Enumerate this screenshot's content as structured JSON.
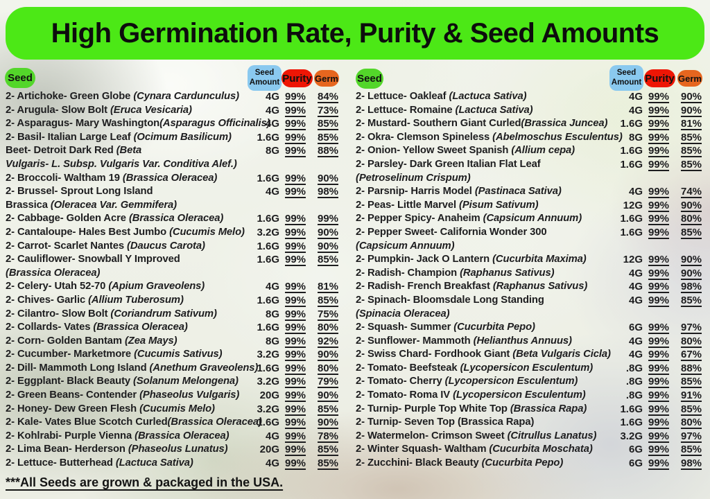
{
  "title": "High Germination Rate, Purity & Seed Amounts",
  "footer": "***All Seeds are grown & packaged in the USA.",
  "colors": {
    "banner": "#4ce816",
    "seed_badge": "#53d62a",
    "amount_badge": "#8ac9ef",
    "purity_badge": "#ee1605",
    "germ_badge": "#e6661f",
    "text": "#1d1d1f"
  },
  "header": {
    "seed": "Seed",
    "amount1": "Seed",
    "amount2": "Amount",
    "purity": "Purity",
    "germ": "Germ"
  },
  "columns": [
    {
      "side": "left",
      "rows": [
        {
          "lines": [
            [
              {
                "t": "2- Artichoke- Green Globe "
              },
              {
                "t": "(Cynara Cardunculus)",
                "i": 1
              }
            ]
          ],
          "amount": "4G",
          "purity": "99%",
          "germ": "84%"
        },
        {
          "lines": [
            [
              {
                "t": "2- Arugula- Slow Bolt "
              },
              {
                "t": "(Eruca Vesicaria)",
                "i": 1
              }
            ]
          ],
          "amount": "4G",
          "purity": "99%",
          "germ": "73%"
        },
        {
          "lines": [
            [
              {
                "t": "2- Asparagus- Mary Washington"
              },
              {
                "t": "(Asparagus Officinalis)",
                "i": 1
              }
            ]
          ],
          "amount": "4G",
          "purity": "99%",
          "germ": "85%"
        },
        {
          "lines": [
            [
              {
                "t": "2- Basil- Italian Large Leaf "
              },
              {
                "t": "(Ocimum Basilicum)",
                "i": 1
              }
            ]
          ],
          "amount": "1.6G",
          "purity": "99%",
          "germ": "85%"
        },
        {
          "lines": [
            [
              {
                "t": "Beet- Detroit Dark Red "
              },
              {
                "t": "(Beta",
                "i": 1
              }
            ],
            [
              {
                "t": "Vulgaris- L. Subsp. Vulgaris Var. Conditiva Alef.)",
                "i": 1
              }
            ]
          ],
          "amount": "8G",
          "purity": "99%",
          "germ": "88%"
        },
        {
          "lines": [
            [
              {
                "t": "2- Broccoli- Waltham 19 "
              },
              {
                "t": "(Brassica Oleracea)",
                "i": 1
              }
            ]
          ],
          "amount": "1.6G",
          "purity": "99%",
          "germ": "90%"
        },
        {
          "lines": [
            [
              {
                "t": "2- Brussel- Sprout Long Island"
              }
            ],
            [
              {
                "t": "Brassica "
              },
              {
                "t": "(Oleracea Var. Gemmifera)",
                "i": 1
              }
            ]
          ],
          "amount": "4G",
          "purity": "99%",
          "germ": "98%"
        },
        {
          "lines": [
            [
              {
                "t": "2- Cabbage- Golden Acre "
              },
              {
                "t": "(Brassica Oleracea)",
                "i": 1
              }
            ]
          ],
          "amount": "1.6G",
          "purity": "99%",
          "germ": "99%"
        },
        {
          "lines": [
            [
              {
                "t": "2- Cantaloupe- Hales Best Jumbo "
              },
              {
                "t": "(Cucumis Melo)",
                "i": 1
              }
            ]
          ],
          "amount": "3.2G",
          "purity": "99%",
          "germ": "90%"
        },
        {
          "lines": [
            [
              {
                "t": "2- Carrot- Scarlet Nantes "
              },
              {
                "t": "(Daucus Carota)",
                "i": 1
              }
            ]
          ],
          "amount": "1.6G",
          "purity": "99%",
          "germ": "90%"
        },
        {
          "lines": [
            [
              {
                "t": "2- Cauliflower- Snowball Y Improved"
              }
            ],
            [
              {
                "t": "(Brassica Oleracea)",
                "i": 1
              }
            ]
          ],
          "amount": "1.6G",
          "purity": "99%",
          "germ": "85%"
        },
        {
          "lines": [
            [
              {
                "t": "2- Celery- Utah 52-70 "
              },
              {
                "t": "(Apium Graveolens)",
                "i": 1
              }
            ]
          ],
          "amount": "4G",
          "purity": "99%",
          "germ": "81%"
        },
        {
          "lines": [
            [
              {
                "t": "2- Chives- Garlic "
              },
              {
                "t": "(Allium Tuberosum)",
                "i": 1
              }
            ]
          ],
          "amount": "1.6G",
          "purity": "99%",
          "germ": "85%"
        },
        {
          "lines": [
            [
              {
                "t": "2- Cilantro- Slow Bolt "
              },
              {
                "t": "(Coriandrum Sativum)",
                "i": 1
              }
            ]
          ],
          "amount": "8G",
          "purity": "99%",
          "germ": "75%"
        },
        {
          "lines": [
            [
              {
                "t": "2- Collards- Vates "
              },
              {
                "t": "(Brassica Oleracea)",
                "i": 1
              }
            ]
          ],
          "amount": "1.6G",
          "purity": "99%",
          "germ": "80%"
        },
        {
          "lines": [
            [
              {
                "t": "2- Corn- Golden Bantam "
              },
              {
                "t": "(Zea Mays)",
                "i": 1
              }
            ]
          ],
          "amount": "8G",
          "purity": "99%",
          "germ": "92%"
        },
        {
          "lines": [
            [
              {
                "t": "2- Cucumber- Marketmore "
              },
              {
                "t": "(Cucumis Sativus)",
                "i": 1
              }
            ]
          ],
          "amount": "3.2G",
          "purity": "99%",
          "germ": "90%"
        },
        {
          "lines": [
            [
              {
                "t": "2- Dill- Mammoth Long Island "
              },
              {
                "t": "(Anethum Graveolens)",
                "i": 1
              }
            ]
          ],
          "amount": "1.6G",
          "purity": "99%",
          "germ": "80%"
        },
        {
          "lines": [
            [
              {
                "t": "2- Eggplant- Black Beauty "
              },
              {
                "t": "(Solanum Melongena)",
                "i": 1
              }
            ]
          ],
          "amount": "3.2G",
          "purity": "99%",
          "germ": "79%"
        },
        {
          "lines": [
            [
              {
                "t": "2- Green Beans- Contender "
              },
              {
                "t": "(Phaseolus Vulgaris)",
                "i": 1
              }
            ]
          ],
          "amount": "20G",
          "purity": "99%",
          "germ": "90%"
        },
        {
          "lines": [
            [
              {
                "t": "2- Honey- Dew Green Flesh "
              },
              {
                "t": "(Cucumis Melo)",
                "i": 1
              }
            ]
          ],
          "amount": "3.2G",
          "purity": "99%",
          "germ": "85%"
        },
        {
          "lines": [
            [
              {
                "t": "2- Kale- Vates Blue Scotch Curled"
              },
              {
                "t": "(Brassica Oleracea)",
                "i": 1
              }
            ]
          ],
          "amount": "1.6G",
          "purity": "99%",
          "germ": "90%"
        },
        {
          "lines": [
            [
              {
                "t": "2- Kohlrabi- Purple Vienna "
              },
              {
                "t": "(Brassica Oleracea)",
                "i": 1
              }
            ]
          ],
          "amount": "4G",
          "purity": "99%",
          "germ": "78%"
        },
        {
          "lines": [
            [
              {
                "t": "2- Lima Bean- Herderson "
              },
              {
                "t": "(Phaseolus Lunatus)",
                "i": 1
              }
            ]
          ],
          "amount": "20G",
          "purity": "99%",
          "germ": "85%"
        },
        {
          "lines": [
            [
              {
                "t": "2- Lettuce- Butterhead "
              },
              {
                "t": "(Lactuca Sativa)",
                "i": 1
              }
            ]
          ],
          "amount": "4G",
          "purity": "99%",
          "germ": "85%"
        }
      ]
    },
    {
      "side": "right",
      "rows": [
        {
          "lines": [
            [
              {
                "t": "2- Lettuce- Oakleaf "
              },
              {
                "t": "(Lactuca Sativa)",
                "i": 1
              }
            ]
          ],
          "amount": "4G",
          "purity": "99%",
          "germ": "90%"
        },
        {
          "lines": [
            [
              {
                "t": "2- Lettuce- Romaine "
              },
              {
                "t": "(Lactuca Sativa)",
                "i": 1
              }
            ]
          ],
          "amount": "4G",
          "purity": "99%",
          "germ": "90%"
        },
        {
          "lines": [
            [
              {
                "t": "2- Mustard-  Southern Giant Curled"
              },
              {
                "t": "(Brassica Juncea)",
                "i": 1
              }
            ]
          ],
          "amount": "1.6G",
          "purity": "99%",
          "germ": "81%"
        },
        {
          "lines": [
            [
              {
                "t": "2- Okra- Clemson Spineless "
              },
              {
                "t": "(Abelmoschus Esculentus)",
                "i": 1
              }
            ]
          ],
          "amount": "8G",
          "purity": "99%",
          "germ": "85%"
        },
        {
          "lines": [
            [
              {
                "t": "2- Onion- Yellow Sweet Spanish "
              },
              {
                "t": "(Allium cepa)",
                "i": 1
              }
            ]
          ],
          "amount": "1.6G",
          "purity": "99%",
          "germ": "85%"
        },
        {
          "lines": [
            [
              {
                "t": "2- Parsley- Dark Green Italian Flat Leaf"
              }
            ],
            [
              {
                "t": "(Petroselinum Crispum)",
                "i": 1
              }
            ]
          ],
          "amount": "1.6G",
          "purity": "99%",
          "germ": "85%"
        },
        {
          "lines": [
            [
              {
                "t": "2- Parsnip- Harris Model "
              },
              {
                "t": "(Pastinaca Sativa)",
                "i": 1
              }
            ]
          ],
          "amount": "4G",
          "purity": "99%",
          "germ": "74%"
        },
        {
          "lines": [
            [
              {
                "t": "2- Peas- Little Marvel "
              },
              {
                "t": "(Pisum Sativum)",
                "i": 1
              }
            ]
          ],
          "amount": "12G",
          "purity": "99%",
          "germ": "90%"
        },
        {
          "lines": [
            [
              {
                "t": "2- Pepper Spicy- Anaheim "
              },
              {
                "t": "(Capsicum Annuum)",
                "i": 1
              }
            ]
          ],
          "amount": "1.6G",
          "purity": "99%",
          "germ": "80%"
        },
        {
          "lines": [
            [
              {
                "t": "2- Pepper Sweet- California Wonder 300"
              }
            ],
            [
              {
                "t": "(Capsicum Annuum)",
                "i": 1
              }
            ]
          ],
          "amount": "1.6G",
          "purity": "99%",
          "germ": "85%"
        },
        {
          "lines": [
            [
              {
                "t": "2- Pumpkin- Jack O Lantern "
              },
              {
                "t": "(Cucurbita Maxima)",
                "i": 1
              }
            ]
          ],
          "amount": "12G",
          "purity": "99%",
          "germ": "90%"
        },
        {
          "lines": [
            [
              {
                "t": "2- Radish- Champion "
              },
              {
                "t": "(Raphanus Sativus)",
                "i": 1
              }
            ]
          ],
          "amount": "4G",
          "purity": "99%",
          "germ": "90%"
        },
        {
          "lines": [
            [
              {
                "t": "2- Radish- French Breakfast "
              },
              {
                "t": "(Raphanus Sativus)",
                "i": 1
              }
            ]
          ],
          "amount": "4G",
          "purity": "99%",
          "germ": "98%"
        },
        {
          "lines": [
            [
              {
                "t": "2- Spinach- Bloomsdale Long Standing"
              }
            ],
            [
              {
                "t": "(Spinacia Oleracea)",
                "i": 1
              }
            ]
          ],
          "amount": "4G",
          "purity": "99%",
          "germ": "85%"
        },
        {
          "lines": [
            [
              {
                "t": "2- Squash- Summer "
              },
              {
                "t": "(Cucurbita Pepo)",
                "i": 1
              }
            ]
          ],
          "amount": "6G",
          "purity": "99%",
          "germ": "97%"
        },
        {
          "lines": [
            [
              {
                "t": "2- Sunflower- Mammoth "
              },
              {
                "t": "(Helianthus Annuus)",
                "i": 1
              }
            ]
          ],
          "amount": "4G",
          "purity": "99%",
          "germ": "80%"
        },
        {
          "lines": [
            [
              {
                "t": "2- Swiss Chard- Fordhook Giant "
              },
              {
                "t": "(Beta Vulgaris Cicla)",
                "i": 1
              }
            ]
          ],
          "amount": "4G",
          "purity": "99%",
          "germ": "67%"
        },
        {
          "lines": [
            [
              {
                "t": "2- Tomato- Beefsteak "
              },
              {
                "t": "(Lycopersicon Esculentum)",
                "i": 1
              }
            ]
          ],
          "amount": ".8G",
          "purity": "99%",
          "germ": "88%"
        },
        {
          "lines": [
            [
              {
                "t": "2- Tomato- Cherry "
              },
              {
                "t": "(Lycopersicon Esculentum)",
                "i": 1
              }
            ]
          ],
          "amount": ".8G",
          "purity": "99%",
          "germ": "85%"
        },
        {
          "lines": [
            [
              {
                "t": "2- Tomato- Roma IV  "
              },
              {
                "t": "(Lycopersicon Esculentum)",
                "i": 1
              }
            ]
          ],
          "amount": ".8G",
          "purity": "99%",
          "germ": "91%"
        },
        {
          "lines": [
            [
              {
                "t": "2- Turnip- Purple Top White Top "
              },
              {
                "t": "(Brassica Rapa)",
                "i": 1
              }
            ]
          ],
          "amount": "1.6G",
          "purity": "99%",
          "germ": "85%"
        },
        {
          "lines": [
            [
              {
                "t": "2- Turnip- Seven Top (Brassica Rapa)"
              }
            ]
          ],
          "amount": "1.6G",
          "purity": "99%",
          "germ": "80%"
        },
        {
          "lines": [
            [
              {
                "t": "2- Watermelon- Crimson Sweet "
              },
              {
                "t": "(Citrullus Lanatus)",
                "i": 1
              }
            ]
          ],
          "amount": "3.2G",
          "purity": "99%",
          "germ": "97%"
        },
        {
          "lines": [
            [
              {
                "t": "2- Winter Squash- Waltham "
              },
              {
                "t": "(Cucurbita Moschata)",
                "i": 1
              }
            ]
          ],
          "amount": "6G",
          "purity": "99%",
          "germ": "85%"
        },
        {
          "lines": [
            [
              {
                "t": "2- Zucchini-  Black Beauty "
              },
              {
                "t": "(Cucurbita Pepo)",
                "i": 1
              }
            ]
          ],
          "amount": "6G",
          "purity": "99%",
          "germ": "98%"
        }
      ]
    }
  ]
}
